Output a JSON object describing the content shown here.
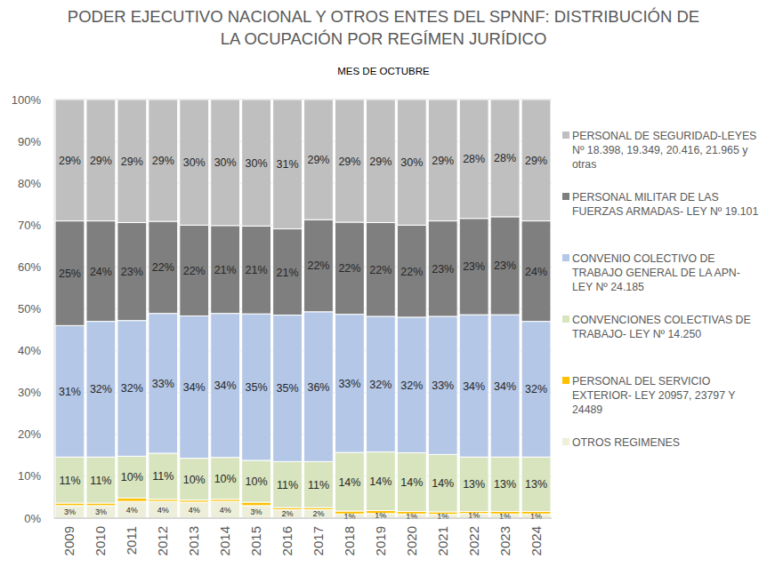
{
  "chart_data": {
    "type": "bar",
    "stacked": true,
    "data_labels": true,
    "grid": true,
    "legend": "right",
    "title": "PODER EJECUTIVO NACIONAL Y OTROS ENTES DEL SPNNF: DISTRIBUCIÓN DE\nLA OCUPACIÓN POR REGÍMEN JURÍDICO",
    "subtitle": "MES DE OCTUBRE",
    "categories": [
      "2009",
      "2010",
      "2011",
      "2012",
      "2013",
      "2014",
      "2015",
      "2016",
      "2017",
      "2018",
      "2019",
      "2020",
      "2021",
      "2022",
      "2023",
      "2024"
    ],
    "ylim": [
      0,
      100
    ],
    "yticks": [
      {
        "value": 0,
        "label": "0%"
      },
      {
        "value": 10,
        "label": "10%"
      },
      {
        "value": 20,
        "label": "20%"
      },
      {
        "value": 30,
        "label": "30%"
      },
      {
        "value": 40,
        "label": "40%"
      },
      {
        "value": 50,
        "label": "50%"
      },
      {
        "value": 60,
        "label": "60%"
      },
      {
        "value": 70,
        "label": "70%"
      },
      {
        "value": 80,
        "label": "80%"
      },
      {
        "value": 90,
        "label": "90%"
      },
      {
        "value": 100,
        "label": "100%"
      }
    ],
    "series": [
      {
        "name": "OTROS REGIMENES",
        "color": "#EDEFDA",
        "values": [
          3,
          3,
          4,
          4,
          3.8,
          4,
          3,
          2,
          2,
          1,
          1.1,
          1,
          0.9,
          1.1,
          1,
          1
        ],
        "value_labels": [
          "3%",
          "3%",
          "4%",
          "4%",
          "4%",
          "4%",
          "3%",
          "2%",
          "2%",
          "1%",
          "1%",
          "1%",
          "1%",
          "1%",
          "1%",
          "1%"
        ]
      },
      {
        "name": "PERSONAL DEL SERVICIO EXTERIOR- LEY 20957, 23797 Y 24489",
        "color": "#FFC000",
        "data_labels": false,
        "values": [
          0.6,
          0.6,
          0.8,
          0.5,
          0.5,
          0.5,
          0.8,
          0.5,
          0.5,
          0.7,
          0.7,
          0.6,
          0.6,
          0.5,
          0.6,
          0.6
        ]
      },
      {
        "name": "CONVENCIONES COLECTIVAS DE TRABAJO- LEY Nº 14.250",
        "color": "#D7E4BD",
        "values": [
          11,
          11,
          10,
          11,
          10,
          10,
          10,
          11,
          11,
          14,
          14,
          14,
          13.7,
          13,
          13,
          13
        ],
        "value_labels": [
          "11%",
          "11%",
          "10%",
          "11%",
          "10%",
          "10%",
          "10%",
          "11%",
          "11%",
          "14%",
          "14%",
          "14%",
          "14%",
          "13%",
          "13%",
          "13%"
        ]
      },
      {
        "name": "CONVENIO COLECTIVO DE TRABAJO GENERAL DE LA APN- LEY Nº 24.185",
        "color": "#B4C7E7",
        "values": [
          31.4,
          32.4,
          32.4,
          33.4,
          34,
          34.4,
          35,
          35,
          35.8,
          33,
          32.4,
          32.4,
          33,
          34,
          34,
          32.4
        ],
        "value_labels": [
          "31%",
          "32%",
          "32%",
          "33%",
          "34%",
          "34%",
          "35%",
          "35%",
          "36%",
          "33%",
          "32%",
          "32%",
          "33%",
          "34%",
          "34%",
          "32%"
        ]
      },
      {
        "name": "PERSONAL MILITAR DE LAS FUERZAS ARMADAS- LEY Nº 19.101",
        "color": "#7F7F7F",
        "values": [
          25,
          24,
          23.4,
          22,
          21.7,
          21,
          21,
          20.6,
          22,
          22,
          22.4,
          22,
          22.8,
          23,
          23.4,
          24
        ],
        "value_labels": [
          "25%",
          "24%",
          "23%",
          "22%",
          "22%",
          "21%",
          "21%",
          "21%",
          "22%",
          "22%",
          "22%",
          "22%",
          "23%",
          "23%",
          "23%",
          "24%"
        ]
      },
      {
        "name": "PERSONAL DE SEGURIDAD-LEYES Nº 18.398, 19.349, 20.416, 21.965 y otras",
        "color": "#BFBFBF",
        "values": [
          29,
          29,
          29.4,
          29.1,
          30,
          30.1,
          30.2,
          30.9,
          28.7,
          29.3,
          29.4,
          30,
          29,
          28.4,
          28,
          29
        ],
        "value_labels": [
          "29%",
          "29%",
          "29%",
          "29%",
          "30%",
          "30%",
          "30%",
          "31%",
          "29%",
          "29%",
          "29%",
          "30%",
          "29%",
          "28%",
          "28%",
          "29%"
        ]
      }
    ]
  }
}
